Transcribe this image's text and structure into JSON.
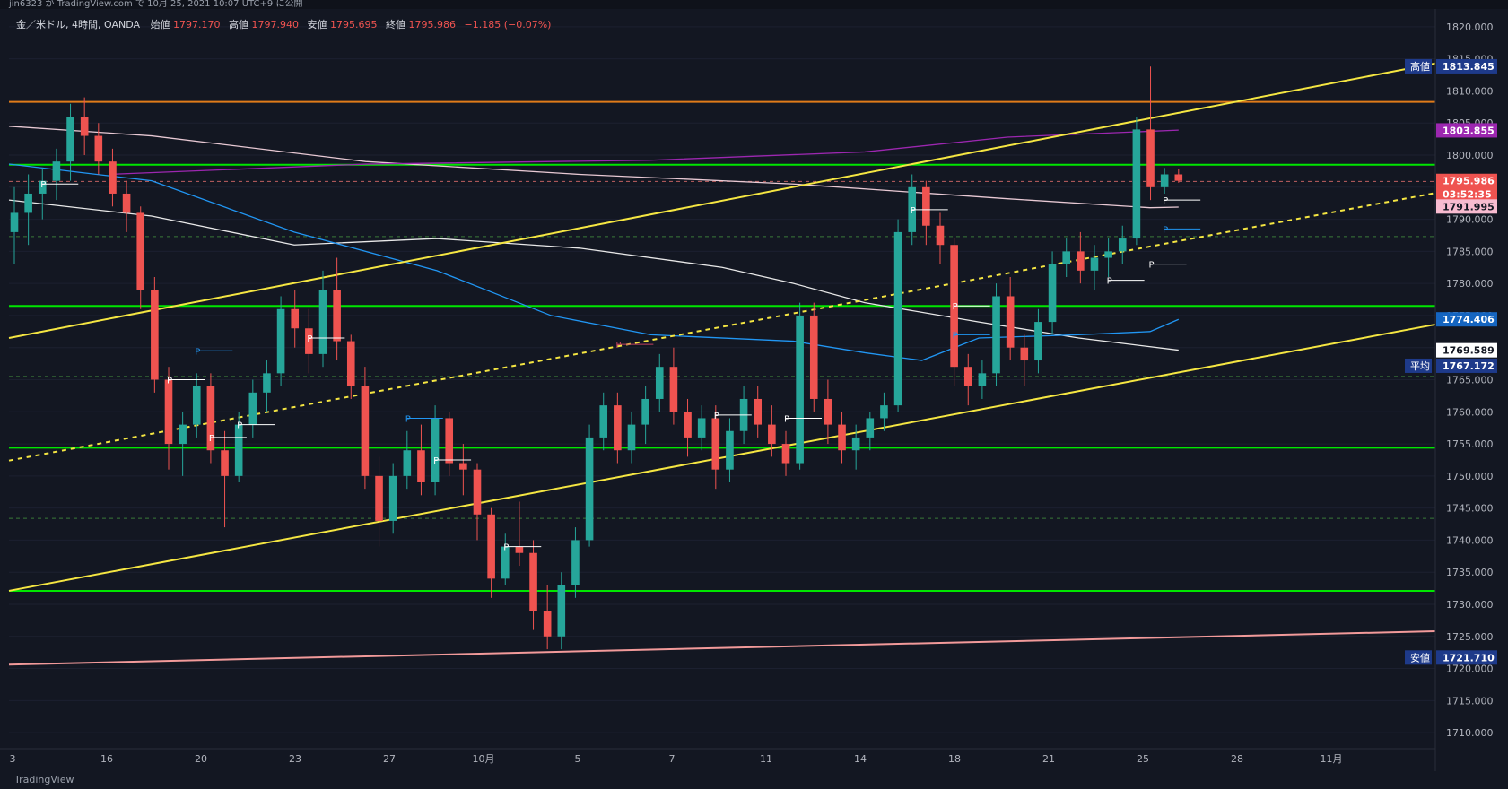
{
  "header": {
    "publish_line": "jin6323 が TradingView.com で 10月 25, 2021 10:07 UTC+9 に公開",
    "symbol": "金／米ドル, 4時間, OANDA",
    "open_label": "始値",
    "open_value": "1797.170",
    "high_label": "高値",
    "high_value": "1797.940",
    "low_label": "安値",
    "low_value": "1795.695",
    "close_label": "終値",
    "close_value": "1795.986",
    "change": "−1.185 (−0.07%)"
  },
  "footer": {
    "brand": "TradingView"
  },
  "colors": {
    "background": "#131722",
    "up": "#26a69a",
    "down": "#ef5350",
    "green_level": "#00e600",
    "yellow_trend": "#f5e642",
    "orange_level": "#e07b1a",
    "pink_trend": "#f29a9a",
    "purple_ma": "#9c27b0",
    "blue_ma": "#2196f3",
    "pink_ma": "#e8c9d4",
    "white_ma": "#e8e8e8"
  },
  "chart_data": {
    "type": "candlestick",
    "title": "金／米ドル, 4時間, OANDA",
    "ylim": [
      1707.5,
      1822.5
    ],
    "y_ticks": [
      "1820.000",
      "1815.000",
      "1810.000",
      "1805.000",
      "1800.000",
      "1795.000",
      "1790.000",
      "1785.000",
      "1780.000",
      "1775.000",
      "1770.000",
      "1765.000",
      "1760.000",
      "1755.000",
      "1750.000",
      "1745.000",
      "1740.000",
      "1735.000",
      "1730.000",
      "1725.000",
      "1720.000",
      "1715.000",
      "1710.000"
    ],
    "x_labels": [
      "3",
      "16",
      "20",
      "23",
      "27",
      "10月",
      "5",
      "7",
      "11",
      "14",
      "18",
      "21",
      "25",
      "28",
      "11月"
    ],
    "price_tags": [
      {
        "label": "高値",
        "value": "1813.845",
        "price": 1813.845,
        "color": "#1e3a8a"
      },
      {
        "label": "",
        "value": "1803.855",
        "price": 1803.855,
        "color": "#9c27b0"
      },
      {
        "label": "",
        "value": "1795.986",
        "price": 1795.986,
        "color": "#ef5350"
      },
      {
        "label": "",
        "value": "03:52:35",
        "price": 1793.9,
        "color": "#ef5350"
      },
      {
        "label": "",
        "value": "1791.995",
        "price": 1791.995,
        "color": "#f8bbd0"
      },
      {
        "label": "",
        "value": "1774.406",
        "price": 1774.406,
        "color": "#1565c0"
      },
      {
        "label": "",
        "value": "1769.589",
        "price": 1769.589,
        "color": "#ffffff"
      },
      {
        "label": "平均",
        "value": "1767.172",
        "price": 1767.172,
        "color": "#1e3a8a"
      },
      {
        "label": "安値",
        "value": "1721.710",
        "price": 1721.71,
        "color": "#1e3a8a"
      }
    ],
    "horizontal_levels": [
      {
        "price": 1808.3,
        "color": "#e07b1a",
        "style": "solid"
      },
      {
        "price": 1798.5,
        "color": "#00e600",
        "style": "solid"
      },
      {
        "price": 1776.5,
        "color": "#00e600",
        "style": "solid"
      },
      {
        "price": 1754.4,
        "color": "#00e600",
        "style": "solid"
      },
      {
        "price": 1732.1,
        "color": "#00e600",
        "style": "solid"
      },
      {
        "price": 1787.3,
        "color": "#3a7a3a",
        "style": "dashed"
      },
      {
        "price": 1765.5,
        "color": "#3a7a3a",
        "style": "dashed"
      },
      {
        "price": 1743.4,
        "color": "#3a7a3a",
        "style": "dashed"
      },
      {
        "price": 1795.9,
        "color": "#c06060",
        "style": "dashed"
      }
    ],
    "trend_lines": [
      {
        "x": [
          0.0,
          1.0
        ],
        "y": [
          1771.5,
          1814.3
        ],
        "color": "#f5e642",
        "style": "solid"
      },
      {
        "x": [
          0.0,
          1.0
        ],
        "y": [
          1732.1,
          1773.6
        ],
        "color": "#f5e642",
        "style": "solid"
      },
      {
        "x": [
          0.0,
          1.0
        ],
        "y": [
          1752.4,
          1794.1
        ],
        "color": "#f5e642",
        "style": "dashed"
      },
      {
        "x": [
          0.0,
          1.0
        ],
        "y": [
          1720.6,
          1725.8
        ],
        "color": "#f29a9a",
        "style": "solid"
      }
    ],
    "series": [
      {
        "name": "",
        "type": "ma",
        "color": "#e8c9d4",
        "points": [
          [
            0.0,
            1804.5
          ],
          [
            0.1,
            1803.0
          ],
          [
            0.25,
            1799.0
          ],
          [
            0.4,
            1797.0
          ],
          [
            0.55,
            1795.5
          ],
          [
            0.7,
            1793.2
          ],
          [
            0.8,
            1791.8
          ],
          [
            0.82,
            1791.9
          ]
        ]
      },
      {
        "name": "",
        "type": "ma",
        "color": "#9c27b0",
        "points": [
          [
            0.07,
            1797.0
          ],
          [
            0.25,
            1798.6
          ],
          [
            0.45,
            1799.2
          ],
          [
            0.6,
            1800.5
          ],
          [
            0.7,
            1802.8
          ],
          [
            0.82,
            1803.9
          ]
        ]
      },
      {
        "name": "",
        "type": "ma",
        "color": "#e8e8e8",
        "points": [
          [
            0.0,
            1793.0
          ],
          [
            0.1,
            1790.5
          ],
          [
            0.2,
            1786.0
          ],
          [
            0.3,
            1787.0
          ],
          [
            0.4,
            1785.5
          ],
          [
            0.5,
            1782.5
          ],
          [
            0.55,
            1780.0
          ],
          [
            0.6,
            1777.0
          ],
          [
            0.68,
            1774.0
          ],
          [
            0.75,
            1771.5
          ],
          [
            0.82,
            1769.6
          ]
        ]
      },
      {
        "name": "",
        "type": "ma",
        "color": "#2196f3",
        "points": [
          [
            0.0,
            1798.6
          ],
          [
            0.1,
            1796.0
          ],
          [
            0.2,
            1788.0
          ],
          [
            0.3,
            1782.0
          ],
          [
            0.38,
            1775.0
          ],
          [
            0.45,
            1772.0
          ],
          [
            0.55,
            1771.0
          ],
          [
            0.6,
            1769.2
          ],
          [
            0.64,
            1768.0
          ],
          [
            0.68,
            1771.5
          ],
          [
            0.75,
            1772.0
          ],
          [
            0.8,
            1772.5
          ],
          [
            0.82,
            1774.4
          ]
        ]
      }
    ],
    "candles": [
      [
        1788,
        1795,
        1783,
        1791
      ],
      [
        1791,
        1797,
        1786,
        1794
      ],
      [
        1794,
        1798,
        1790,
        1796
      ],
      [
        1796,
        1801,
        1793,
        1799
      ],
      [
        1799,
        1808,
        1796,
        1806
      ],
      [
        1806,
        1809,
        1800,
        1803
      ],
      [
        1803,
        1805,
        1797,
        1799
      ],
      [
        1799,
        1801,
        1792,
        1794
      ],
      [
        1794,
        1796,
        1788,
        1791
      ],
      [
        1791,
        1792,
        1776,
        1779
      ],
      [
        1779,
        1781,
        1763,
        1765
      ],
      [
        1765,
        1767,
        1751,
        1755
      ],
      [
        1755,
        1760,
        1750,
        1758
      ],
      [
        1758,
        1766,
        1756,
        1764
      ],
      [
        1764,
        1766,
        1752,
        1754
      ],
      [
        1754,
        1757,
        1742,
        1750
      ],
      [
        1750,
        1760,
        1749,
        1758
      ],
      [
        1758,
        1765,
        1756,
        1763
      ],
      [
        1763,
        1768,
        1760,
        1766
      ],
      [
        1766,
        1778,
        1764,
        1776
      ],
      [
        1776,
        1779,
        1770,
        1773
      ],
      [
        1773,
        1776,
        1766,
        1769
      ],
      [
        1769,
        1782,
        1767,
        1779
      ],
      [
        1779,
        1784,
        1768,
        1771
      ],
      [
        1771,
        1772,
        1762,
        1764
      ],
      [
        1764,
        1767,
        1748,
        1750
      ],
      [
        1750,
        1753,
        1739,
        1743
      ],
      [
        1743,
        1752,
        1741,
        1750
      ],
      [
        1750,
        1757,
        1748,
        1754
      ],
      [
        1754,
        1758,
        1747,
        1749
      ],
      [
        1749,
        1761,
        1747,
        1759
      ],
      [
        1759,
        1760,
        1750,
        1752
      ],
      [
        1752,
        1755,
        1747,
        1751
      ],
      [
        1751,
        1752,
        1740,
        1744
      ],
      [
        1744,
        1745,
        1731,
        1734
      ],
      [
        1734,
        1741,
        1733,
        1739
      ],
      [
        1739,
        1746,
        1736,
        1738
      ],
      [
        1738,
        1740,
        1726,
        1729
      ],
      [
        1729,
        1733,
        1723,
        1725
      ],
      [
        1725,
        1735,
        1723,
        1733
      ],
      [
        1733,
        1742,
        1731,
        1740
      ],
      [
        1740,
        1758,
        1739,
        1756
      ],
      [
        1756,
        1763,
        1754,
        1761
      ],
      [
        1761,
        1763,
        1752,
        1754
      ],
      [
        1754,
        1760,
        1752,
        1758
      ],
      [
        1758,
        1764,
        1755,
        1762
      ],
      [
        1762,
        1769,
        1760,
        1767
      ],
      [
        1767,
        1770,
        1758,
        1760
      ],
      [
        1760,
        1762,
        1753,
        1756
      ],
      [
        1756,
        1761,
        1754,
        1759
      ],
      [
        1759,
        1761,
        1748,
        1751
      ],
      [
        1751,
        1759,
        1749,
        1757
      ],
      [
        1757,
        1764,
        1755,
        1762
      ],
      [
        1762,
        1764,
        1756,
        1758
      ],
      [
        1758,
        1761,
        1753,
        1755
      ],
      [
        1755,
        1757,
        1750,
        1752
      ],
      [
        1752,
        1777,
        1751,
        1775
      ],
      [
        1775,
        1777,
        1760,
        1762
      ],
      [
        1762,
        1765,
        1755,
        1758
      ],
      [
        1758,
        1760,
        1752,
        1754
      ],
      [
        1754,
        1758,
        1751,
        1756
      ],
      [
        1756,
        1760,
        1754,
        1759
      ],
      [
        1759,
        1763,
        1757,
        1761
      ],
      [
        1761,
        1790,
        1760,
        1788
      ],
      [
        1788,
        1797,
        1786,
        1795
      ],
      [
        1795,
        1796,
        1786,
        1789
      ],
      [
        1789,
        1791,
        1783,
        1786
      ],
      [
        1786,
        1787,
        1764,
        1767
      ],
      [
        1767,
        1769,
        1761,
        1764
      ],
      [
        1764,
        1768,
        1762,
        1766
      ],
      [
        1766,
        1780,
        1764,
        1778
      ],
      [
        1778,
        1781,
        1768,
        1770
      ],
      [
        1770,
        1772,
        1764,
        1768
      ],
      [
        1768,
        1776,
        1766,
        1774
      ],
      [
        1774,
        1785,
        1772,
        1783
      ],
      [
        1783,
        1787,
        1781,
        1785
      ],
      [
        1785,
        1788,
        1780,
        1782
      ],
      [
        1782,
        1786,
        1779,
        1784
      ],
      [
        1784,
        1787,
        1781,
        1785
      ],
      [
        1785,
        1789,
        1783,
        1787
      ],
      [
        1787,
        1806,
        1786,
        1804
      ],
      [
        1804,
        1813.8,
        1793,
        1795
      ],
      [
        1795,
        1798,
        1794,
        1797
      ],
      [
        1797,
        1797.9,
        1795.7,
        1796
      ]
    ],
    "pivot_markers": [
      {
        "i": 2,
        "price": 1795.5,
        "color": "#ffffff"
      },
      {
        "i": 11,
        "price": 1765,
        "color": "#ffffff"
      },
      {
        "i": 14,
        "price": 1756,
        "color": "#ffffff"
      },
      {
        "i": 16,
        "price": 1758,
        "color": "#ffffff"
      },
      {
        "i": 13,
        "price": 1769.5,
        "color": "#2196f3"
      },
      {
        "i": 21,
        "price": 1771.5,
        "color": "#ffffff"
      },
      {
        "i": 28,
        "price": 1759,
        "color": "#2196f3"
      },
      {
        "i": 30,
        "price": 1752.5,
        "color": "#ffffff"
      },
      {
        "i": 35,
        "price": 1739,
        "color": "#ffffff"
      },
      {
        "i": 43,
        "price": 1770.5,
        "color": "#c04060"
      },
      {
        "i": 50,
        "price": 1759.5,
        "color": "#ffffff"
      },
      {
        "i": 55,
        "price": 1759,
        "color": "#ffffff"
      },
      {
        "i": 64,
        "price": 1791.5,
        "color": "#ffffff"
      },
      {
        "i": 67,
        "price": 1776.5,
        "color": "#ffffff"
      },
      {
        "i": 67,
        "price": 1772,
        "color": "#2196f3"
      },
      {
        "i": 78,
        "price": 1780.5,
        "color": "#ffffff"
      },
      {
        "i": 81,
        "price": 1783,
        "color": "#ffffff"
      },
      {
        "i": 82,
        "price": 1793,
        "color": "#ffffff"
      },
      {
        "i": 82,
        "price": 1788.5,
        "color": "#2196f3"
      }
    ]
  }
}
